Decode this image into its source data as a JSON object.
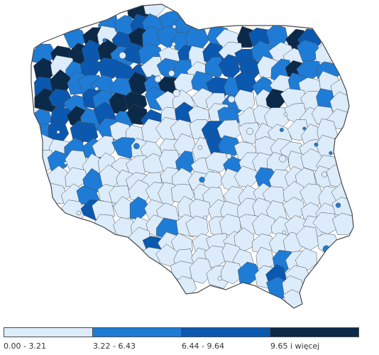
{
  "colors": {
    "class_1": "#dcecfb",
    "class_2": "#1e7cd6",
    "class_3": "#0b58b0",
    "class_4": "#0b2a4a",
    "border": "#4a4a4a",
    "background": "#ffffff"
  },
  "map": {
    "subject": "Poland counties choropleth",
    "class_counts": {
      "class_1": 260,
      "class_2": 70,
      "class_3": 30,
      "class_4": 12
    }
  },
  "legend": {
    "items": [
      {
        "label": "0.00 - 3.21",
        "color_key": "class_1"
      },
      {
        "label": "3.22 - 6.43",
        "color_key": "class_2"
      },
      {
        "label": "6.44 - 9.64",
        "color_key": "class_3"
      },
      {
        "label": "9.65 i więcej",
        "color_key": "class_4"
      }
    ]
  }
}
